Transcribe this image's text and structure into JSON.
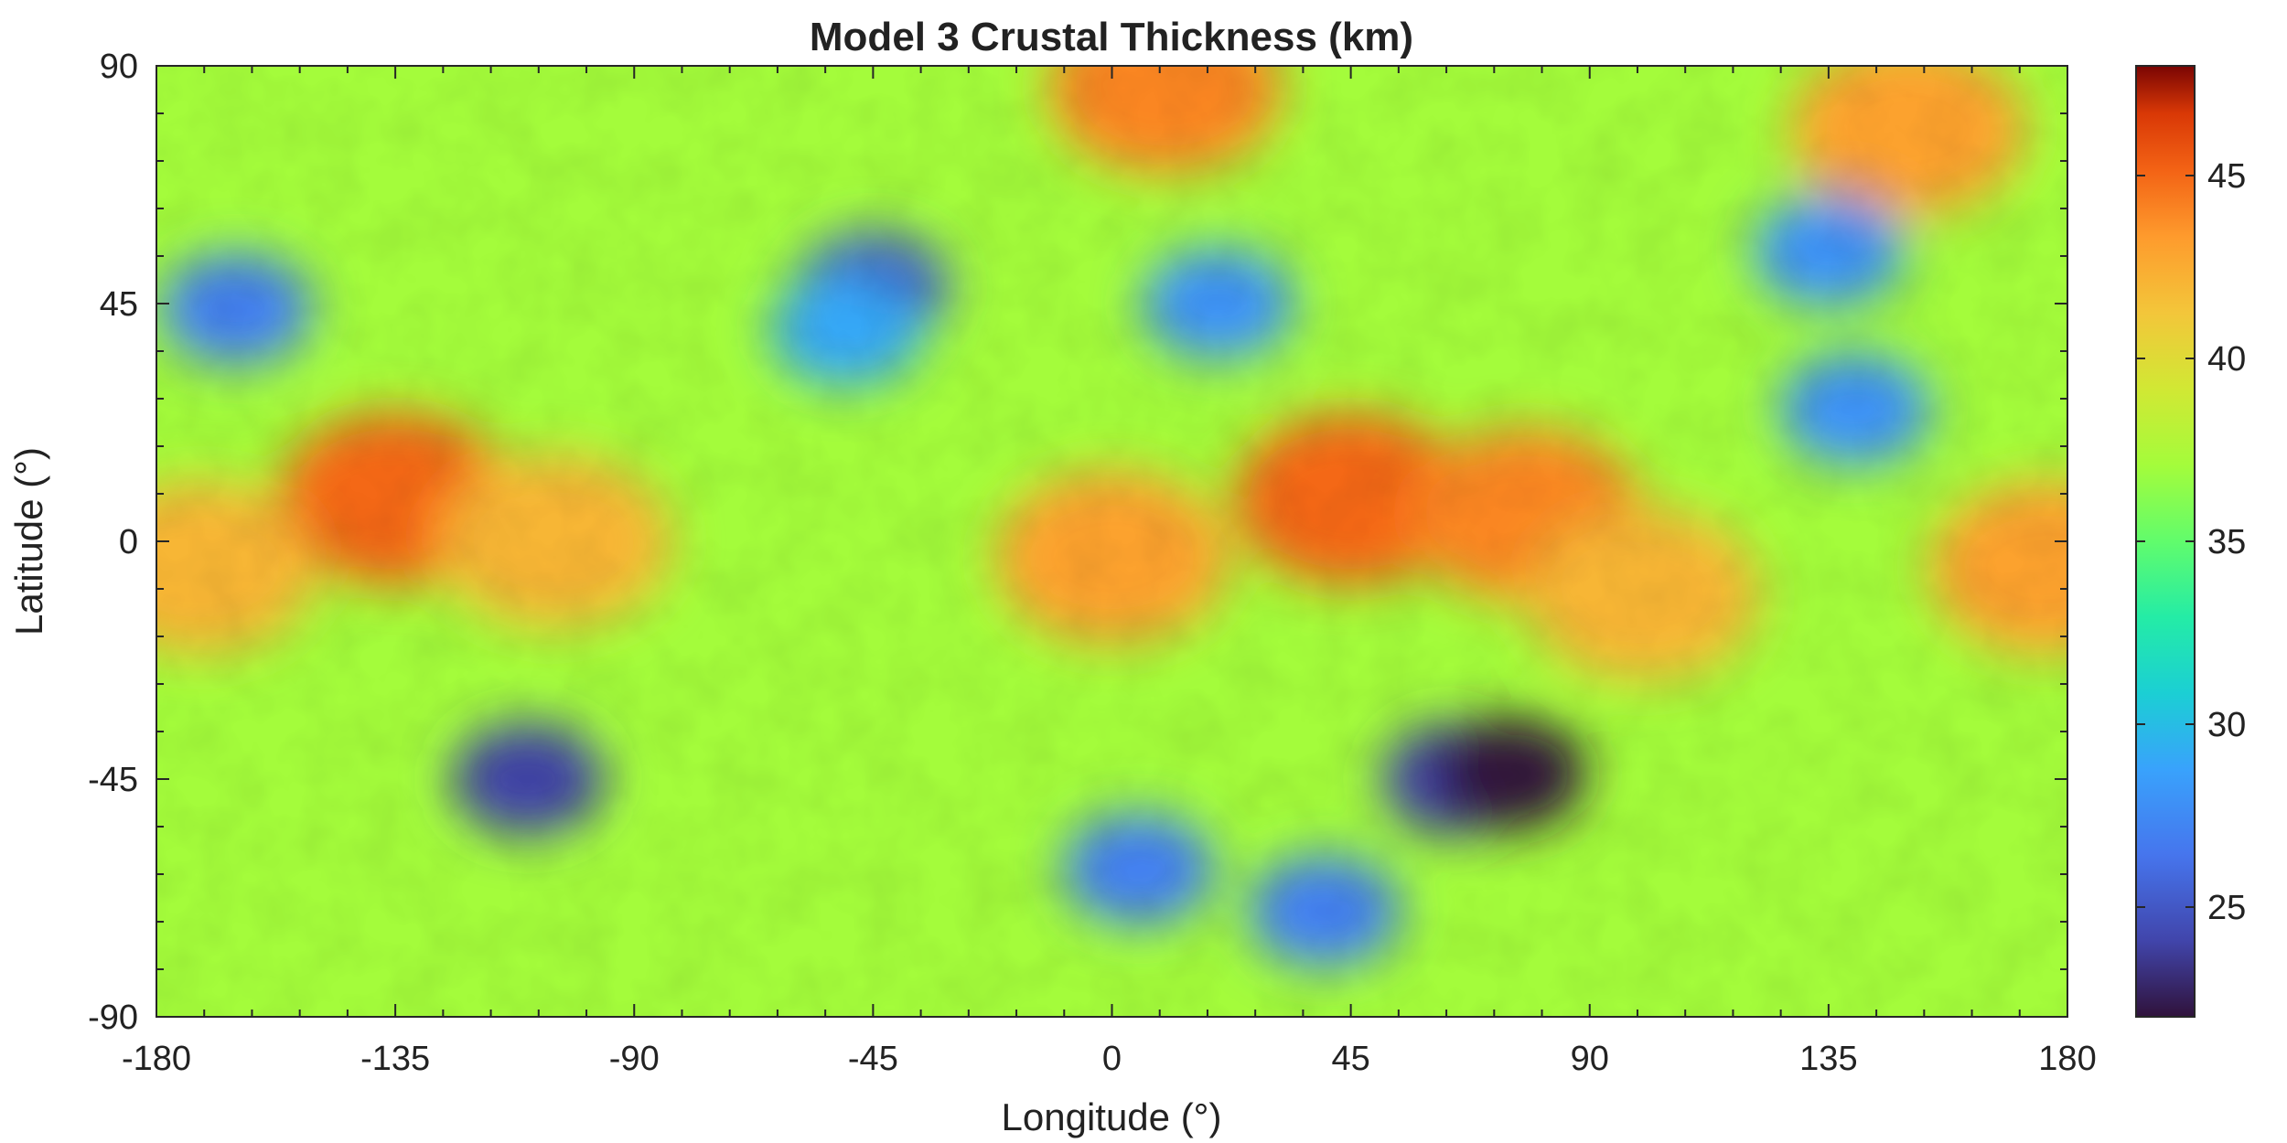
{
  "chart_data": {
    "type": "heatmap",
    "title": "Model 3 Crustal Thickness (km)",
    "xlabel": "Longitude (°)",
    "ylabel": "Latitude (°)",
    "xlim": [
      -180,
      180
    ],
    "ylim": [
      -90,
      90
    ],
    "xticks": [
      -180,
      -135,
      -90,
      -45,
      0,
      45,
      90,
      135,
      180
    ],
    "yticks": [
      -90,
      -45,
      0,
      45,
      90
    ],
    "colorbar": {
      "range": [
        22,
        48
      ],
      "ticks": [
        25,
        30,
        35,
        40,
        45
      ],
      "colormap": "turbo"
    },
    "features": [
      {
        "kind": "high",
        "lon": -135,
        "lat": 8,
        "value": 45
      },
      {
        "kind": "high",
        "lon": -105,
        "lat": 0,
        "value": 42
      },
      {
        "kind": "high",
        "lon": -172,
        "lat": -5,
        "value": 42
      },
      {
        "kind": "high",
        "lon": 0,
        "lat": -3,
        "value": 43
      },
      {
        "kind": "high",
        "lon": 45,
        "lat": 8,
        "value": 45
      },
      {
        "kind": "high",
        "lon": 78,
        "lat": 5,
        "value": 44
      },
      {
        "kind": "high",
        "lon": 100,
        "lat": -10,
        "value": 42
      },
      {
        "kind": "high",
        "lon": 176,
        "lat": -5,
        "value": 43
      },
      {
        "kind": "high",
        "lon": 10,
        "lat": 86,
        "value": 44
      },
      {
        "kind": "high",
        "lon": 150,
        "lat": 78,
        "value": 43
      },
      {
        "kind": "low",
        "lon": -110,
        "lat": -45,
        "value": 24
      },
      {
        "kind": "low",
        "lon": 65,
        "lat": -45,
        "value": 24
      },
      {
        "kind": "low",
        "lon": 75,
        "lat": -44,
        "value": 22
      },
      {
        "kind": "low",
        "lon": -45,
        "lat": 48,
        "value": 25
      },
      {
        "kind": "low",
        "lon": -165,
        "lat": 44,
        "value": 27
      },
      {
        "kind": "low",
        "lon": 5,
        "lat": -62,
        "value": 27
      },
      {
        "kind": "low",
        "lon": 40,
        "lat": -70,
        "value": 27
      },
      {
        "kind": "low",
        "lon": 140,
        "lat": 25,
        "value": 28
      },
      {
        "kind": "low",
        "lon": 135,
        "lat": 55,
        "value": 28
      },
      {
        "kind": "low",
        "lon": -50,
        "lat": 40,
        "value": 29
      },
      {
        "kind": "low",
        "lon": 20,
        "lat": 45,
        "value": 28
      }
    ]
  }
}
